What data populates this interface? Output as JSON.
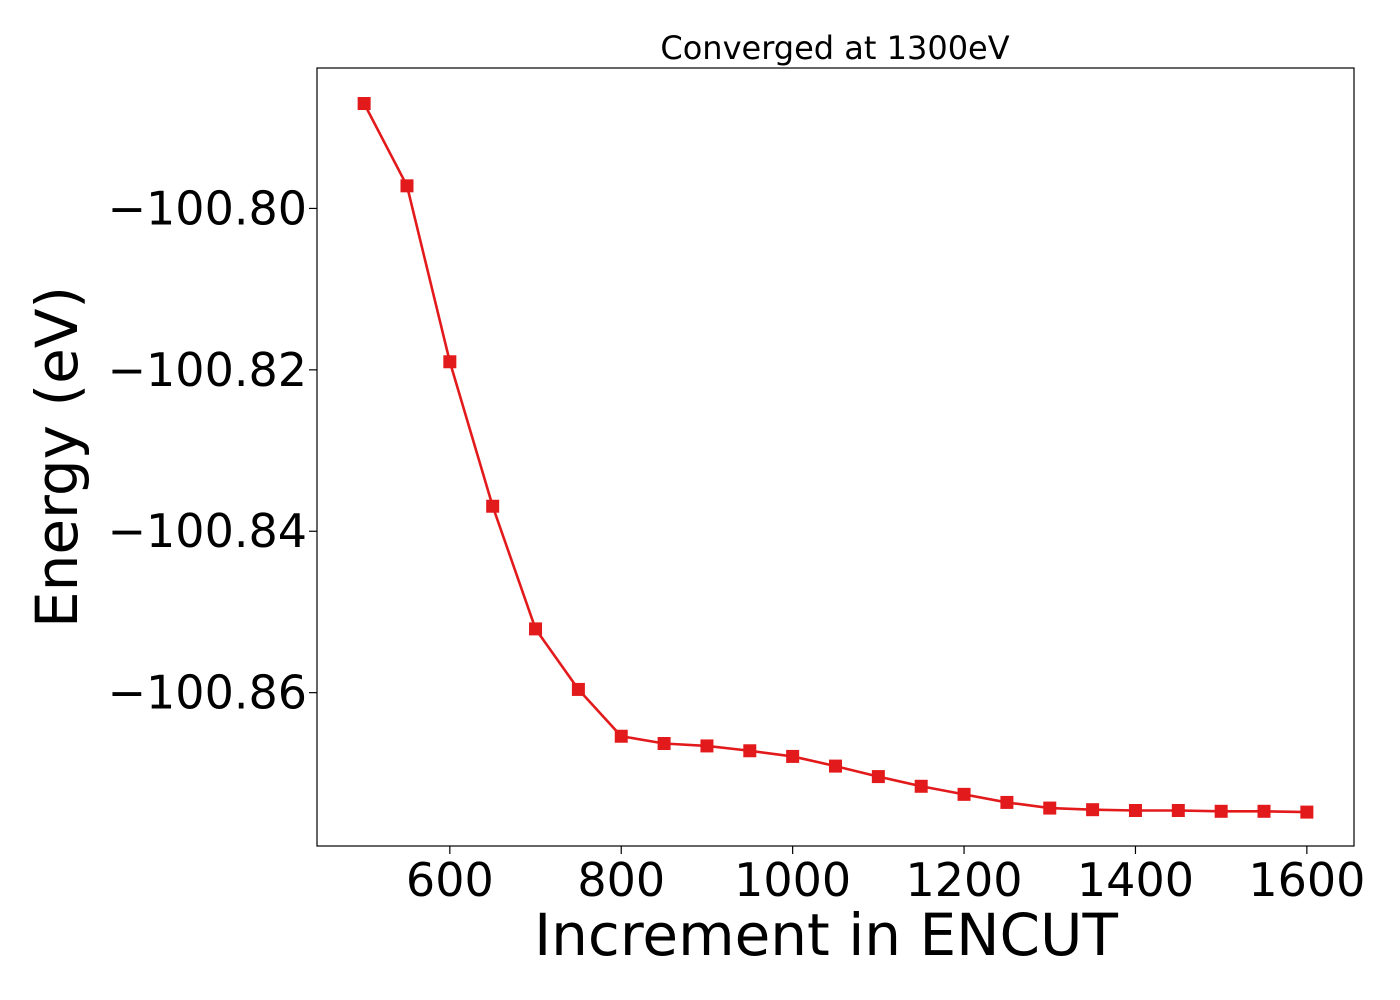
{
  "chart_data": {
    "type": "line",
    "title": "Converged at 1300eV",
    "xlabel": "Increment in ENCUT",
    "ylabel": "Energy (eV)",
    "xlim": [
      445,
      1655
    ],
    "ylim": [
      -100.879,
      -100.7826
    ],
    "x_ticks": [
      600,
      800,
      1000,
      1200,
      1400,
      1600
    ],
    "y_ticks": [
      -100.8,
      -100.82,
      -100.84,
      -100.86
    ],
    "y_tick_labels": [
      "−100.80",
      "−100.82",
      "−100.84",
      "−100.86"
    ],
    "grid": false,
    "series": [
      {
        "color": "#e31a1c",
        "marker": "square",
        "x": [
          500,
          550,
          600,
          650,
          700,
          750,
          800,
          850,
          900,
          950,
          1000,
          1050,
          1100,
          1150,
          1200,
          1250,
          1300,
          1350,
          1400,
          1450,
          1500,
          1550,
          1600
        ],
        "y": [
          -100.787,
          -100.7972,
          -100.819,
          -100.8369,
          -100.8521,
          -100.8596,
          -100.8654,
          -100.8663,
          -100.8666,
          -100.8672,
          -100.8679,
          -100.8691,
          -100.8704,
          -100.8716,
          -100.8726,
          -100.8736,
          -100.8743,
          -100.8745,
          -100.8746,
          -100.8746,
          -100.8747,
          -100.8747,
          -100.8748
        ]
      }
    ]
  }
}
